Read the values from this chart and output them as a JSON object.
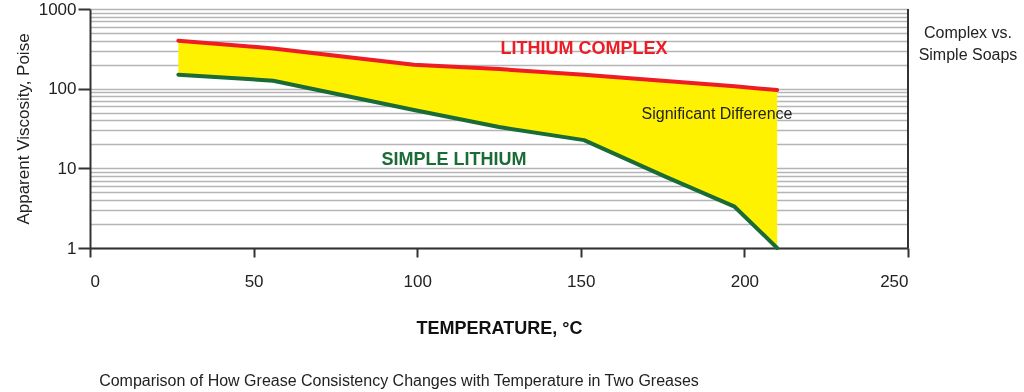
{
  "chart_data": {
    "type": "line",
    "xlabel": "TEMPERATURE, °C",
    "ylabel": "Apparent Viscosity, Poise",
    "x": [
      27,
      56,
      99,
      125,
      151,
      176,
      197,
      210
    ],
    "series": [
      {
        "name": "LITHIUM COMPLEX",
        "color": "#ee1c25",
        "values": [
          400,
          320,
          200,
          176,
          150,
          125,
          107,
          96
        ],
        "lower": [
          150,
          126,
          54,
          33,
          22.6,
          7.8,
          3.3,
          1
        ],
        "upper": [
          400,
          320,
          200,
          176,
          150,
          125,
          107,
          96
        ]
      },
      {
        "name": "SIMPLE LITHIUM",
        "color": "#1a6b35",
        "values": [
          150,
          126,
          54,
          33,
          22.6,
          7.8,
          3.3,
          1
        ]
      }
    ],
    "xlim": [
      0,
      250
    ],
    "xticks": [
      0,
      50,
      100,
      150,
      200,
      250
    ],
    "ylim": [
      1,
      1000
    ],
    "log": true,
    "grid": "y",
    "yticks": [
      1,
      {
        "value": 2,
        "label": null
      },
      {
        "value": 3,
        "label": null
      },
      {
        "value": 4,
        "label": null
      },
      {
        "value": 5,
        "label": null
      },
      {
        "value": 6,
        "label": null
      },
      {
        "value": 7,
        "label": null
      },
      {
        "value": 8,
        "label": null
      },
      {
        "value": 9,
        "label": null
      },
      10,
      {
        "value": 20,
        "label": null
      },
      {
        "value": 30,
        "label": null
      },
      {
        "value": 40,
        "label": null
      },
      {
        "value": 50,
        "label": null
      },
      {
        "value": 60,
        "label": null
      },
      {
        "value": 70,
        "label": null
      },
      {
        "value": 80,
        "label": null
      },
      {
        "value": 90,
        "label": null
      },
      100,
      {
        "value": 200,
        "label": null
      },
      {
        "value": 300,
        "label": null
      },
      {
        "value": 400,
        "label": null
      },
      {
        "value": 500,
        "label": null
      },
      {
        "value": 600,
        "label": null
      },
      {
        "value": 700,
        "label": null
      },
      {
        "value": 800,
        "label": null
      },
      {
        "value": 900,
        "label": null
      },
      1000
    ],
    "annotations": [
      "Significant Difference",
      "Complex vs. Simple Soaps",
      "Comparison of How Grease Consistency Changes with Temperature in Two Greases"
    ]
  }
}
